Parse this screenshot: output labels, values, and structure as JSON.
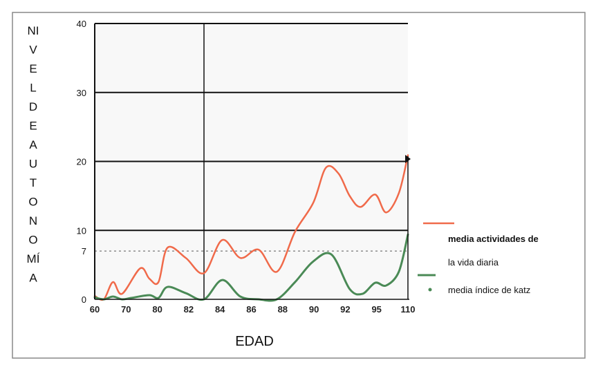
{
  "chart_data": {
    "type": "line",
    "ylabel_letters": [
      "NI",
      "V",
      "E",
      "L",
      "D",
      "E",
      "A",
      "U",
      "T",
      "O",
      "N",
      "O",
      "MÍ",
      "A"
    ],
    "xlabel": "EDAD",
    "x_ticks": [
      "60",
      "70",
      "80",
      "82",
      "84",
      "86",
      "88",
      "90",
      "92",
      "95",
      "110"
    ],
    "y_ticks": [
      {
        "label": "40",
        "value": 40
      },
      {
        "label": "30",
        "value": 30
      },
      {
        "label": "20",
        "value": 20
      },
      {
        "label": "10",
        "value": 10
      },
      {
        "label": "7",
        "value": 7
      },
      {
        "label": "0",
        "value": 0
      }
    ],
    "ylim": [
      0,
      40
    ],
    "reference_line": {
      "value": 7,
      "style": "dashed"
    },
    "vertical_line_at_tick": "82",
    "series": [
      {
        "name": "media actividades de la vida diaria",
        "color": "#f06a4a",
        "points": [
          [
            0,
            0.5
          ],
          [
            0.25,
            0
          ],
          [
            0.5,
            2.5
          ],
          [
            0.75,
            0.8
          ],
          [
            1.25,
            4.5
          ],
          [
            1.5,
            3
          ],
          [
            1.75,
            2.5
          ],
          [
            2,
            7.5
          ],
          [
            2.5,
            6
          ],
          [
            3,
            3.8
          ],
          [
            3.5,
            8.6
          ],
          [
            4,
            6
          ],
          [
            4.5,
            7.2
          ],
          [
            5,
            4
          ],
          [
            5.5,
            9.8
          ],
          [
            6,
            14
          ],
          [
            6.35,
            19.1
          ],
          [
            6.7,
            18.2
          ],
          [
            7,
            15
          ],
          [
            7.3,
            13.4
          ],
          [
            7.7,
            15.2
          ],
          [
            8,
            12.6
          ],
          [
            8.35,
            15.4
          ],
          [
            8.6,
            20.9
          ]
        ]
      },
      {
        "name": "media índice de katz",
        "color": "#4a8a56",
        "points": [
          [
            0,
            0.3
          ],
          [
            0.25,
            0
          ],
          [
            0.5,
            0.4
          ],
          [
            0.75,
            0
          ],
          [
            1,
            0.2
          ],
          [
            1.5,
            0.6
          ],
          [
            1.75,
            0.2
          ],
          [
            2,
            1.8
          ],
          [
            2.5,
            0.9
          ],
          [
            3,
            0
          ],
          [
            3.5,
            2.8
          ],
          [
            4,
            0.4
          ],
          [
            4.5,
            0
          ],
          [
            5,
            0
          ],
          [
            5.5,
            2.5
          ],
          [
            6,
            5.5
          ],
          [
            6.5,
            6.5
          ],
          [
            7,
            1.5
          ],
          [
            7.35,
            0.8
          ],
          [
            7.7,
            2.4
          ],
          [
            8,
            2
          ],
          [
            8.35,
            4
          ],
          [
            8.6,
            9.4
          ]
        ]
      }
    ],
    "legend": [
      {
        "label_line1": "media actividades de",
        "label_line2": "la vida diaria",
        "color": "#f06a4a",
        "marker": "line"
      },
      {
        "label_line1": "media índice de katz",
        "label_line2": "",
        "color": "#4a8a56",
        "marker": "dot"
      }
    ],
    "legend_position": "right",
    "grid": "horizontal"
  }
}
